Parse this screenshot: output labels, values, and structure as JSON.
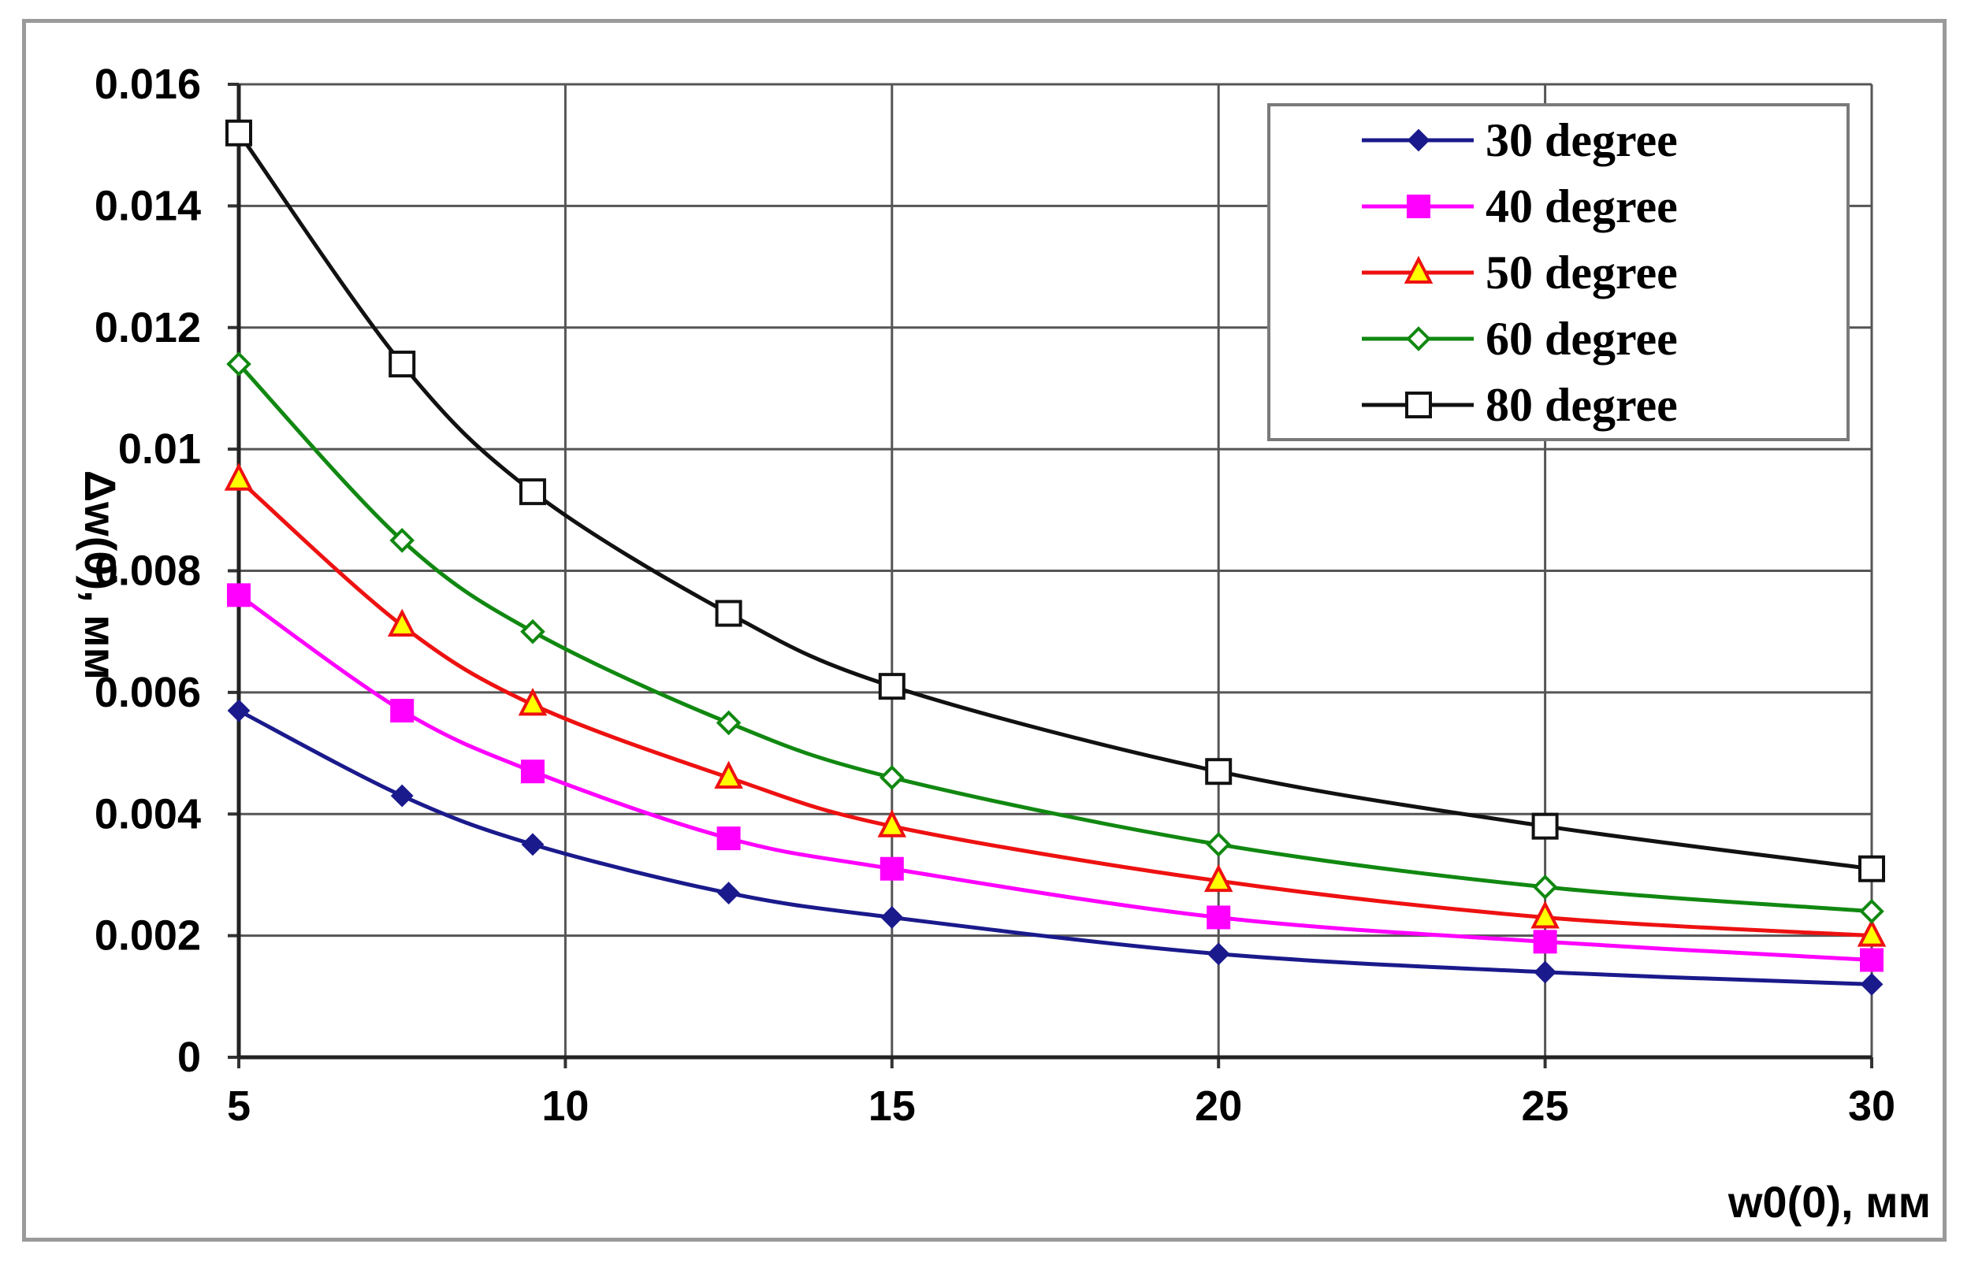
{
  "chart_data": {
    "type": "line",
    "title": "",
    "xlabel": "w0(0), мм",
    "ylabel": "Δw(0), мм",
    "xlim": [
      5,
      30
    ],
    "ylim": [
      0,
      0.016
    ],
    "x_ticks": [
      5,
      10,
      15,
      20,
      25,
      30
    ],
    "x_tick_labels": [
      "5",
      "10",
      "15",
      "20",
      "25",
      "30"
    ],
    "y_ticks": [
      0,
      0.002,
      0.004,
      0.006,
      0.008,
      0.01,
      0.012,
      0.014,
      0.016
    ],
    "y_tick_labels": [
      "0",
      "0.002",
      "0.004",
      "0.006",
      "0.008",
      "0.01",
      "0.012",
      "0.014",
      "0.016"
    ],
    "grid": true,
    "legend_position": "top-right",
    "x": [
      5,
      7.5,
      9.5,
      12.5,
      15,
      20,
      25,
      30
    ],
    "series": [
      {
        "name": "30 degree",
        "color": "#1a1a8c",
        "marker": "diamond",
        "values": [
          0.0057,
          0.0043,
          0.0035,
          0.0027,
          0.0023,
          0.0017,
          0.0014,
          0.0012
        ]
      },
      {
        "name": "40 degree",
        "color": "#ff00ff",
        "marker": "square-filled",
        "values": [
          0.0076,
          0.0057,
          0.0047,
          0.0036,
          0.0031,
          0.0023,
          0.0019,
          0.0016
        ]
      },
      {
        "name": "50 degree",
        "color": "#ee1111",
        "marker": "triangle",
        "values": [
          0.0095,
          0.0071,
          0.0058,
          0.0046,
          0.0038,
          0.0029,
          0.0023,
          0.002
        ]
      },
      {
        "name": "60 degree",
        "color": "#118811",
        "marker": "diamond-open",
        "values": [
          0.0114,
          0.0085,
          0.007,
          0.0055,
          0.0046,
          0.0035,
          0.0028,
          0.0024
        ]
      },
      {
        "name": "80 degree",
        "color": "#111111",
        "marker": "square-open",
        "values": [
          0.0152,
          0.0114,
          0.0093,
          0.0073,
          0.0061,
          0.0047,
          0.0038,
          0.0031
        ]
      }
    ]
  }
}
